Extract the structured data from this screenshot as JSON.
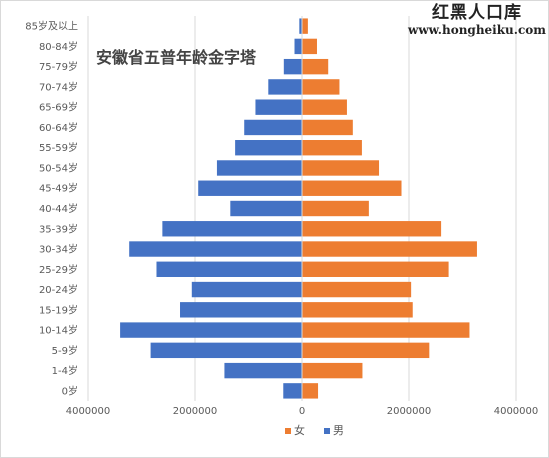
{
  "watermark": {
    "name": "红黑人口库",
    "url": "www.hongheiku.com"
  },
  "chart_data": {
    "type": "bar",
    "orientation": "horizontal",
    "title": "安徽省五普年龄金字塔",
    "categories": [
      "0岁",
      "1-4岁",
      "5-9岁",
      "10-14岁",
      "15-19岁",
      "20-24岁",
      "25-29岁",
      "30-34岁",
      "35-39岁",
      "40-44岁",
      "45-49岁",
      "50-54岁",
      "55-59岁",
      "60-64岁",
      "65-69岁",
      "70-74岁",
      "75-79岁",
      "80-84岁",
      "85岁及以上"
    ],
    "series": [
      {
        "name": "女",
        "color": "#ED7D31",
        "values": [
          300000,
          1130000,
          2380000,
          3130000,
          2070000,
          2040000,
          2740000,
          3270000,
          2600000,
          1250000,
          1860000,
          1440000,
          1120000,
          950000,
          840000,
          700000,
          490000,
          280000,
          110000
        ]
      },
      {
        "name": "男",
        "color": "#4472C4",
        "values": [
          350000,
          1450000,
          2830000,
          3400000,
          2280000,
          2060000,
          2720000,
          3230000,
          2610000,
          1340000,
          1940000,
          1590000,
          1250000,
          1080000,
          870000,
          630000,
          340000,
          140000,
          50000
        ]
      }
    ],
    "xticks": [
      "4000000",
      "2000000",
      "0",
      "2000000",
      "4000000"
    ],
    "xlim": [
      -4000000,
      4000000
    ],
    "grid": true,
    "legend": "bottom"
  }
}
